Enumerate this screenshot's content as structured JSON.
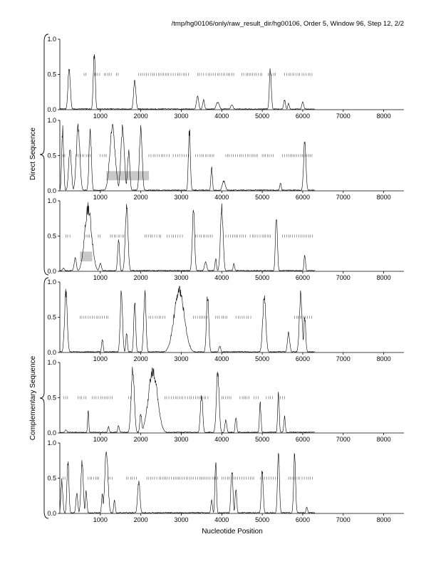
{
  "header": {
    "title": "/tmp/hg00106/only/raw_result_dir/hg00106, Order 5, Window 96, Step 12, 2/2"
  },
  "labels": {
    "xlabel": "Nucleotide Position",
    "group_direct": "Direct Sequence",
    "group_complementary": "Complementary Sequence"
  },
  "chart_data": {
    "type": "line",
    "xlim": [
      0,
      8500
    ],
    "ylim": [
      0,
      1.0
    ],
    "x_ticks": [
      1000,
      2000,
      3000,
      4000,
      5000,
      6000,
      7000,
      8000
    ],
    "y_ticks": [
      "0.0",
      "0.5",
      "1.0"
    ],
    "grid": false,
    "legend": "none",
    "colors": {
      "line": "#000000",
      "region": "#c8c8c8"
    },
    "panels": [
      {
        "group": "Direct Sequence",
        "peaks": [
          [
            230,
            0.65,
            60
          ],
          [
            850,
            0.88,
            50
          ],
          [
            1850,
            0.45,
            60
          ],
          [
            3400,
            0.2,
            60
          ],
          [
            3550,
            0.15,
            50
          ],
          [
            3900,
            0.12,
            80
          ],
          [
            4250,
            0.08,
            60
          ],
          [
            5200,
            0.63,
            50
          ],
          [
            5550,
            0.15,
            50
          ],
          [
            5650,
            0.1,
            40
          ],
          [
            6000,
            0.12,
            50
          ]
        ],
        "marks": [
          [
            600,
            650
          ],
          [
            850,
            1000
          ],
          [
            1100,
            1300
          ],
          [
            1400,
            1450
          ],
          [
            1950,
            2200
          ],
          [
            2250,
            3200
          ],
          [
            3400,
            4300
          ],
          [
            4500,
            5000
          ],
          [
            5150,
            5350
          ],
          [
            5550,
            6250
          ]
        ],
        "regions": []
      },
      {
        "group": "Direct Sequence",
        "peaks": [
          [
            70,
            0.95,
            50
          ],
          [
            250,
            0.65,
            70
          ],
          [
            450,
            0.97,
            90
          ],
          [
            750,
            0.95,
            60
          ],
          [
            1300,
            0.97,
            140
          ],
          [
            1550,
            0.97,
            90
          ],
          [
            1700,
            0.6,
            60
          ],
          [
            2000,
            0.95,
            70
          ],
          [
            3200,
            0.95,
            50
          ],
          [
            3750,
            0.35,
            40
          ],
          [
            4050,
            0.15,
            80
          ],
          [
            5450,
            0.12,
            40
          ],
          [
            6050,
            0.75,
            60
          ]
        ],
        "marks": [
          [
            80,
            130
          ],
          [
            400,
            800
          ],
          [
            1000,
            1150
          ],
          [
            2200,
            2750
          ],
          [
            2800,
            3200
          ],
          [
            3350,
            3850
          ],
          [
            4100,
            4900
          ],
          [
            5000,
            5300
          ],
          [
            5500,
            6250
          ]
        ],
        "regions": [
          [
            1150,
            2200,
            0.15,
            0.28
          ]
        ]
      },
      {
        "group": "Direct Sequence",
        "peaks": [
          [
            90,
            0.05,
            50
          ],
          [
            380,
            0.2,
            60
          ],
          [
            700,
            0.98,
            180
          ],
          [
            1000,
            0.12,
            60
          ],
          [
            1450,
            0.5,
            50
          ],
          [
            1650,
            0.98,
            70
          ],
          [
            3300,
            0.95,
            60
          ],
          [
            3600,
            0.15,
            60
          ],
          [
            3850,
            0.2,
            40
          ],
          [
            4000,
            0.97,
            70
          ],
          [
            4300,
            0.12,
            40
          ],
          [
            5350,
            0.88,
            50
          ],
          [
            6050,
            0.25,
            40
          ]
        ],
        "marks": [
          [
            150,
            250
          ],
          [
            650,
            800
          ],
          [
            950,
            1050
          ],
          [
            1250,
            1600
          ],
          [
            2100,
            2500
          ],
          [
            2650,
            3050
          ],
          [
            3350,
            3800
          ],
          [
            4100,
            4600
          ],
          [
            4700,
            5200
          ],
          [
            5500,
            6250
          ]
        ],
        "regions": [
          [
            500,
            800,
            0.14,
            0.28
          ]
        ]
      },
      {
        "group": "Complementary Sequence",
        "peaks": [
          [
            150,
            0.92,
            70
          ],
          [
            1050,
            0.2,
            40
          ],
          [
            1520,
            0.92,
            60
          ],
          [
            1650,
            0.3,
            40
          ],
          [
            1850,
            0.75,
            50
          ],
          [
            2100,
            0.92,
            60
          ],
          [
            2950,
            0.97,
            260
          ],
          [
            3650,
            0.88,
            60
          ],
          [
            3950,
            0.1,
            50
          ],
          [
            5050,
            0.85,
            80
          ],
          [
            5650,
            0.3,
            60
          ],
          [
            5950,
            0.9,
            70
          ],
          [
            6050,
            0.55,
            50
          ]
        ],
        "marks": [
          [
            500,
            850
          ],
          [
            900,
            1000
          ],
          [
            1050,
            1250
          ],
          [
            2200,
            2600
          ],
          [
            3300,
            3650
          ],
          [
            3850,
            4150
          ],
          [
            4350,
            4750
          ],
          [
            5800,
            6250
          ]
        ],
        "regions": []
      },
      {
        "group": "Complementary Sequence",
        "peaks": [
          [
            150,
            0.05,
            50
          ],
          [
            700,
            0.35,
            30
          ],
          [
            1200,
            0.1,
            40
          ],
          [
            1450,
            0.12,
            40
          ],
          [
            1800,
            0.97,
            80
          ],
          [
            2000,
            0.3,
            50
          ],
          [
            2300,
            0.97,
            230
          ],
          [
            3500,
            0.6,
            60
          ],
          [
            3900,
            0.97,
            70
          ],
          [
            4100,
            0.2,
            50
          ],
          [
            4350,
            0.25,
            40
          ],
          [
            4950,
            0.45,
            40
          ],
          [
            5400,
            0.6,
            40
          ],
          [
            5550,
            0.25,
            40
          ]
        ],
        "marks": [
          [
            100,
            200
          ],
          [
            450,
            650
          ],
          [
            800,
            1300
          ],
          [
            1700,
            1750
          ],
          [
            2600,
            3700
          ],
          [
            4000,
            4250
          ],
          [
            4450,
            4700
          ],
          [
            4800,
            4950
          ],
          [
            5100,
            5300
          ],
          [
            5450,
            5600
          ]
        ],
        "regions": []
      },
      {
        "group": "Complementary Sequence",
        "peaks": [
          [
            50,
            0.5,
            50
          ],
          [
            200,
            0.8,
            50
          ],
          [
            420,
            0.3,
            50
          ],
          [
            550,
            0.8,
            60
          ],
          [
            650,
            0.35,
            40
          ],
          [
            1050,
            0.3,
            40
          ],
          [
            1150,
            0.98,
            80
          ],
          [
            1350,
            0.2,
            40
          ],
          [
            1950,
            0.5,
            60
          ],
          [
            3750,
            0.2,
            40
          ],
          [
            3850,
            0.85,
            40
          ],
          [
            4250,
            0.7,
            50
          ],
          [
            4350,
            0.4,
            40
          ],
          [
            5000,
            0.65,
            50
          ],
          [
            5400,
            0.92,
            50
          ],
          [
            5800,
            0.9,
            50
          ],
          [
            6100,
            0.1,
            40
          ]
        ],
        "marks": [
          [
            80,
            150
          ],
          [
            700,
            1000
          ],
          [
            1200,
            1300
          ],
          [
            1650,
            1950
          ],
          [
            2150,
            3900
          ],
          [
            4000,
            4800
          ],
          [
            4950,
            5400
          ],
          [
            5650,
            6250
          ]
        ],
        "regions": []
      }
    ]
  }
}
